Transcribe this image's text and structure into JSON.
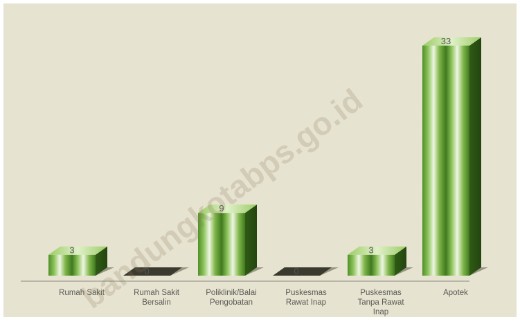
{
  "chart_data": {
    "type": "bar",
    "categories": [
      [
        "Rumah Sakit"
      ],
      [
        "Rumah Sakit",
        "Bersalin"
      ],
      [
        "Poliklinik/Balai",
        "Pengobatan"
      ],
      [
        "Puskesmas",
        "Rawat Inap"
      ],
      [
        "Puskesmas",
        "Tanpa Rawat",
        "Inap"
      ],
      [
        "Apotek"
      ]
    ],
    "values": [
      3,
      0,
      9,
      0,
      3,
      33
    ],
    "data_labels": [
      "3",
      "0",
      "9",
      "0",
      "3",
      "33"
    ],
    "ylim": [
      0,
      34
    ],
    "grid": false,
    "legend": "none",
    "style": "3d-column"
  },
  "watermark": "bandungkotabps.go.id",
  "colors": {
    "background": "#e6e3d0",
    "bar_light": "#e8f3d8",
    "bar_mid": "#7fb548",
    "bar_dark": "#3f7a1f",
    "bar_side": "#2f5b15",
    "bar_top": "#a3d36b",
    "zero_bar": "#3a3a2e",
    "axis_line": "#8a8a80",
    "label": "#5a5a55"
  }
}
